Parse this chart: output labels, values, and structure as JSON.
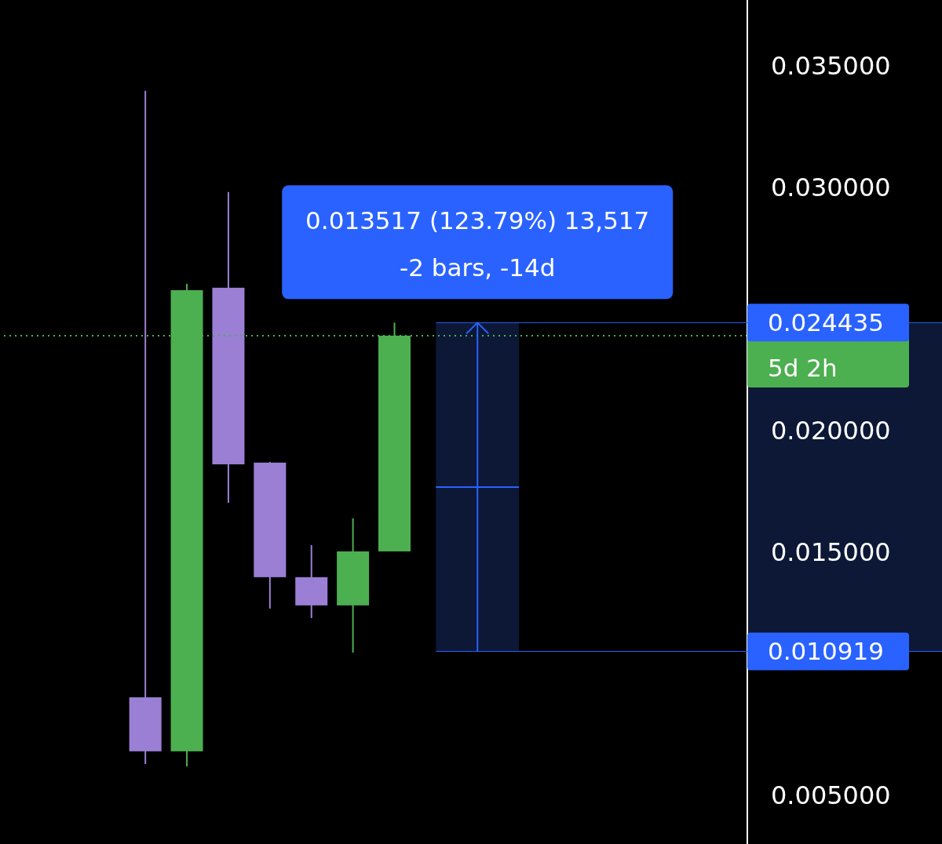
{
  "chart_data": {
    "type": "candlestick",
    "categories": [
      null,
      null,
      null,
      null,
      null,
      null,
      null,
      null,
      null,
      null,
      null,
      null,
      null,
      null,
      null,
      null,
      null,
      null
    ],
    "ohlc": [
      null,
      null,
      null,
      [
        0.00903,
        0.03397,
        0.00629,
        0.00681
      ],
      [
        0.00681,
        0.02603,
        0.00619,
        0.02577
      ],
      [
        0.02587,
        0.02981,
        0.01703,
        0.01861
      ],
      [
        0.01868,
        0.01871,
        0.01268,
        0.01397
      ],
      [
        0.01397,
        0.01529,
        0.01229,
        0.01281
      ],
      [
        0.01281,
        0.01639,
        0.01087,
        0.01503
      ],
      [
        0.01503,
        0.02444,
        0.01503,
        0.0239
      ],
      null,
      null,
      null,
      null,
      null,
      null,
      null,
      null
    ],
    "colors": [
      null,
      null,
      null,
      "#9b7fd4",
      "#4caf50",
      "#9b7fd4",
      "#9b7fd4",
      "#9b7fd4",
      "#4caf50",
      "#4caf50",
      null,
      null,
      null,
      null,
      null,
      null,
      null,
      null
    ],
    "ylim": [
      0.003,
      0.0377
    ],
    "yticks": [
      {
        "value": 0.005,
        "label": "0.005000"
      },
      {
        "value": 0.015,
        "label": "0.015000"
      },
      {
        "value": 0.02,
        "label": "0.020000"
      },
      {
        "value": 0.03,
        "label": "0.030000"
      },
      {
        "value": 0.035,
        "label": "0.035000"
      }
    ],
    "tick_labels": "y",
    "ref_lines": [
      {
        "axis": "y",
        "value": 0.0239,
        "label": "5d 2h",
        "color": "#4caf50",
        "line_style": "dotted"
      },
      {
        "axis": "y",
        "value": 0.024435,
        "label": "0.024435",
        "color": "#2962ff"
      },
      {
        "axis": "y",
        "value": 0.010919,
        "label": "0.010919",
        "color": "#2962ff"
      }
    ],
    "bands": [
      {
        "axis": "y",
        "from": 0.010919,
        "to": 0.024435,
        "color": "#0c1836"
      }
    ],
    "annotations": [
      "0.013517 (123.79%) 13,517",
      "-2 bars, -14d"
    ]
  }
}
